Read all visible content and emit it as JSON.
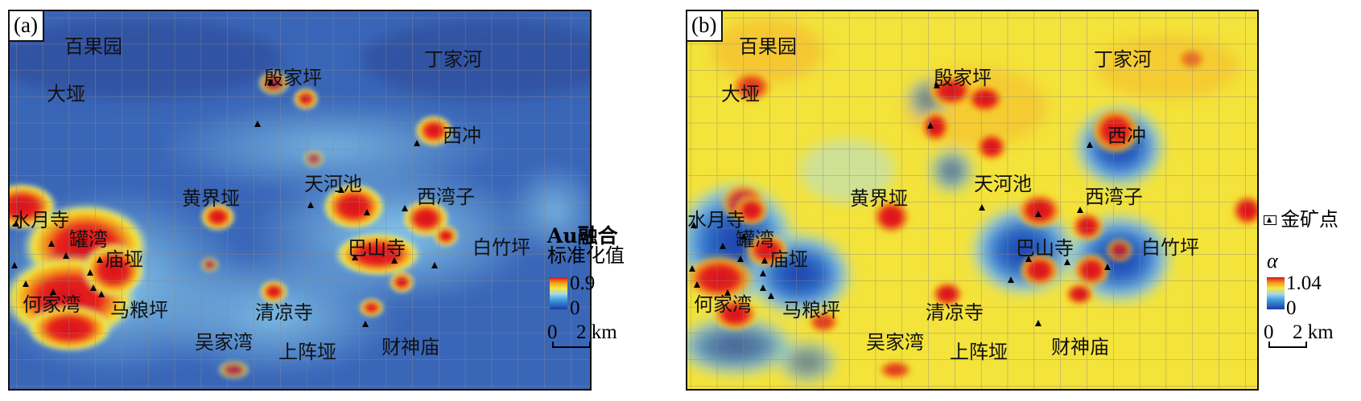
{
  "panels": [
    {
      "tag": "(a)",
      "places": [
        "百果园",
        "大垭",
        "殷家坪",
        "丁家河",
        "西冲",
        "天河池",
        "西湾子",
        "黄界垭",
        "水月寺",
        "罐湾",
        "庙垭",
        "巴山寺",
        "白竹坪",
        "何家湾",
        "马粮坪",
        "清凉寺",
        "吴家湾",
        "上阵垭",
        "财神庙"
      ]
    },
    {
      "tag": "(b)",
      "places": [
        "百果园",
        "大垭",
        "殷家坪",
        "丁家河",
        "西冲",
        "天河池",
        "西湾子",
        "黄界垭",
        "水月寺",
        "罐湾",
        "庙垭",
        "巴山寺",
        "白竹坪",
        "何家湾",
        "马粮坪",
        "清凉寺",
        "吴家湾",
        "上阵垭",
        "财神庙"
      ]
    }
  ],
  "legend_a": {
    "title_line1": "Au融合",
    "title_line2": "标准化值",
    "max": "0.9",
    "min": "0",
    "scale_zero": "0",
    "scale_value": "2 km"
  },
  "legend_b": {
    "symbol_label": "金矿点",
    "symbol": "triangle-in-box",
    "title": "α",
    "max": "1.04",
    "min": "0",
    "scale_zero": "0",
    "scale_value": "2 km"
  },
  "colors": {
    "low": "#1d3aa6",
    "mid": "#f4e93a",
    "high": "#d7121b"
  }
}
